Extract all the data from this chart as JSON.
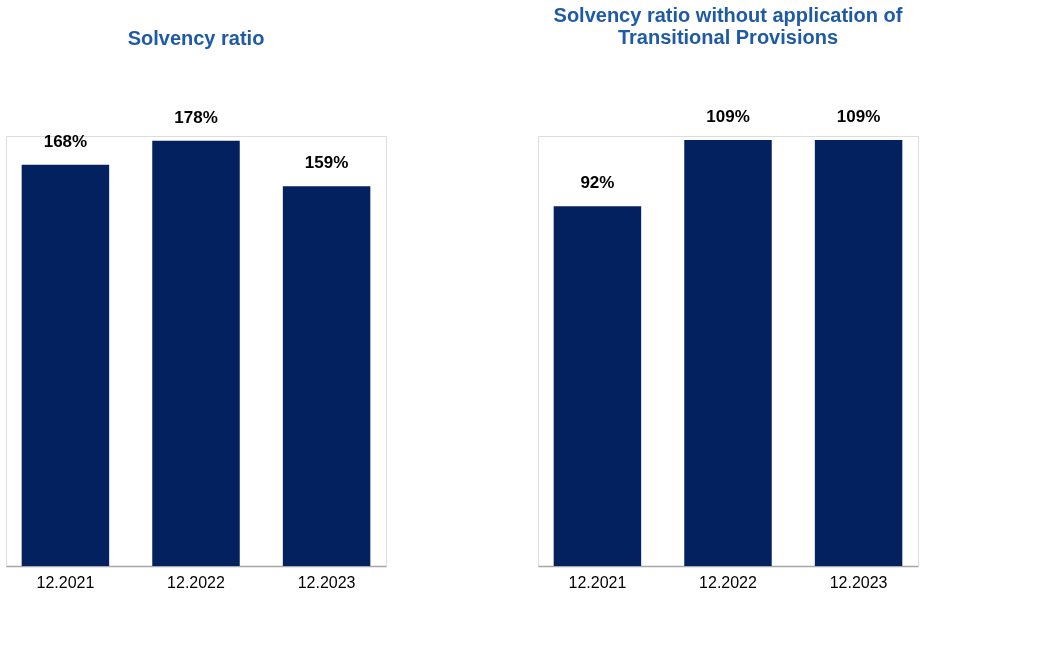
{
  "chart_data": [
    {
      "type": "bar",
      "title": "Solvency ratio",
      "categories": [
        "12.2021",
        "12.2022",
        "12.2023"
      ],
      "series": [
        {
          "color": "#04215f",
          "values": [
            168,
            178,
            159
          ],
          "value_labels": [
            "168%",
            "178%",
            "159%"
          ]
        }
      ],
      "tick_labels": "x"
    },
    {
      "type": "bar",
      "title": "Solvency ratio without application of Transitional Provisions",
      "categories": [
        "12.2021",
        "12.2022",
        "12.2023"
      ],
      "series": [
        {
          "color": "#04215f",
          "values": [
            92,
            109,
            109
          ],
          "value_labels": [
            "92%",
            "109%",
            "109%"
          ]
        }
      ],
      "tick_labels": "x"
    }
  ]
}
